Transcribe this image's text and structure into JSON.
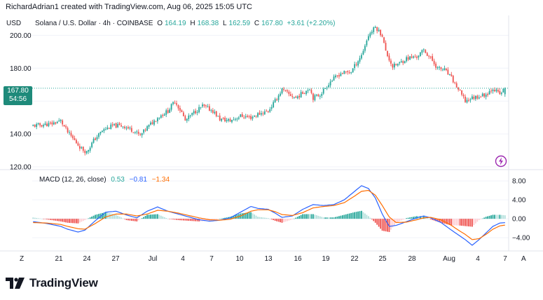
{
  "header": {
    "text": "RichardAdrian1 created with TradingView.com, Aug 06, 2025 15:05 UTC"
  },
  "legend": {
    "currency": "USD",
    "symbol": "Solana / U.S. Dollar · 4h · COINBASE",
    "o_label": "O",
    "o_value": "164.19",
    "h_label": "H",
    "h_value": "168.38",
    "l_label": "L",
    "l_value": "162.59",
    "c_label": "C",
    "c_value": "167.80",
    "change": "+3.61 (+2.20%)"
  },
  "price_badge": {
    "price": "167.80",
    "countdown": "54:56"
  },
  "macd_legend": {
    "name": "MACD (12, 26, close)",
    "hist": "0.53",
    "macd": "−0.81",
    "signal": "−1.34"
  },
  "colors": {
    "up": "#26a69a",
    "down": "#ef5350",
    "macd": "#2962ff",
    "signal": "#ff6d00",
    "badge": "#1e8a7a"
  },
  "logo": {
    "text": "TradingView"
  },
  "chart_data": [
    {
      "type": "candlestick",
      "title": "Solana / U.S. Dollar · 4h · COINBASE",
      "currency": "USD",
      "ylim": [
        120,
        207
      ],
      "y_ticks": [
        "120.00",
        "140.00",
        "160.00",
        "180.00",
        "200.00"
      ],
      "x_ticks": [
        "21",
        "24",
        "27",
        "Jul",
        "4",
        "7",
        "10",
        "13",
        "16",
        "19",
        "22",
        "25",
        "28",
        "Aug",
        "4",
        "7"
      ],
      "last": {
        "open": 164.19,
        "high": 168.38,
        "low": 162.59,
        "close": 167.8
      },
      "close_path": [
        [
          0,
          145
        ],
        [
          10,
          146
        ],
        [
          16,
          148
        ],
        [
          20,
          141
        ],
        [
          24,
          136
        ],
        [
          28,
          131
        ],
        [
          31,
          129
        ],
        [
          35,
          136
        ],
        [
          40,
          142
        ],
        [
          46,
          145
        ],
        [
          52,
          145
        ],
        [
          58,
          142
        ],
        [
          62,
          139
        ],
        [
          66,
          144
        ],
        [
          72,
          150
        ],
        [
          78,
          154
        ],
        [
          82,
          160
        ],
        [
          86,
          153
        ],
        [
          88,
          148
        ],
        [
          93,
          153
        ],
        [
          98,
          157
        ],
        [
          104,
          154
        ],
        [
          108,
          149
        ],
        [
          114,
          148
        ],
        [
          120,
          151
        ],
        [
          126,
          150
        ],
        [
          130,
          152
        ],
        [
          136,
          154
        ],
        [
          140,
          160
        ],
        [
          144,
          167
        ],
        [
          148,
          164
        ],
        [
          152,
          162
        ],
        [
          156,
          165
        ],
        [
          160,
          168
        ],
        [
          162,
          162
        ],
        [
          166,
          164
        ],
        [
          172,
          172
        ],
        [
          178,
          177
        ],
        [
          184,
          178
        ],
        [
          190,
          188
        ],
        [
          194,
          200
        ],
        [
          198,
          205
        ],
        [
          202,
          200
        ],
        [
          204,
          190
        ],
        [
          208,
          181
        ],
        [
          212,
          183
        ],
        [
          216,
          186
        ],
        [
          222,
          187
        ],
        [
          226,
          191
        ],
        [
          230,
          186
        ],
        [
          234,
          180
        ],
        [
          238,
          179
        ],
        [
          242,
          174
        ],
        [
          246,
          167
        ],
        [
          250,
          160
        ],
        [
          254,
          162
        ],
        [
          258,
          163
        ],
        [
          262,
          164
        ],
        [
          266,
          168
        ],
        [
          270,
          164
        ],
        [
          273,
          168
        ]
      ]
    },
    {
      "type": "macd",
      "title": "MACD (12, 26, close)",
      "ylim": [
        -6.2,
        9.2
      ],
      "y_ticks": [
        "−4.00",
        "0.00",
        "4.00",
        "8.00"
      ],
      "hist_last": 0.53,
      "macd_last": -0.81,
      "signal_last": -1.34,
      "macd_path": [
        [
          0,
          -0.6
        ],
        [
          8,
          -1.0
        ],
        [
          16,
          -1.6
        ],
        [
          20,
          -2.2
        ],
        [
          26,
          -2.8
        ],
        [
          30,
          -2.4
        ],
        [
          36,
          -0.4
        ],
        [
          42,
          1.4
        ],
        [
          48,
          1.6
        ],
        [
          54,
          0.8
        ],
        [
          60,
          0.2
        ],
        [
          66,
          1.6
        ],
        [
          72,
          2.5
        ],
        [
          78,
          1.6
        ],
        [
          84,
          1.0
        ],
        [
          90,
          0.4
        ],
        [
          96,
          -0.2
        ],
        [
          102,
          -0.5
        ],
        [
          108,
          -0.3
        ],
        [
          114,
          0.2
        ],
        [
          120,
          1.4
        ],
        [
          126,
          2.6
        ],
        [
          130,
          2.2
        ],
        [
          136,
          2.0
        ],
        [
          140,
          1.2
        ],
        [
          144,
          0.3
        ],
        [
          150,
          0.6
        ],
        [
          156,
          2.0
        ],
        [
          162,
          3.0
        ],
        [
          168,
          2.8
        ],
        [
          174,
          3.0
        ],
        [
          180,
          4.0
        ],
        [
          186,
          5.8
        ],
        [
          190,
          7.0
        ],
        [
          194,
          6.4
        ],
        [
          198,
          4.4
        ],
        [
          202,
          1.0
        ],
        [
          206,
          -1.6
        ],
        [
          210,
          -1.4
        ],
        [
          216,
          -0.6
        ],
        [
          222,
          0.2
        ],
        [
          226,
          0.6
        ],
        [
          230,
          0.2
        ],
        [
          236,
          -0.8
        ],
        [
          242,
          -2.4
        ],
        [
          246,
          -3.4
        ],
        [
          250,
          -4.4
        ],
        [
          254,
          -5.6
        ],
        [
          258,
          -4.4
        ],
        [
          262,
          -3.0
        ],
        [
          266,
          -1.6
        ],
        [
          270,
          -0.9
        ],
        [
          273,
          -0.81
        ]
      ],
      "signal_path": [
        [
          0,
          -0.8
        ],
        [
          8,
          -0.9
        ],
        [
          16,
          -1.2
        ],
        [
          20,
          -1.6
        ],
        [
          26,
          -2.1
        ],
        [
          30,
          -2.2
        ],
        [
          36,
          -1.0
        ],
        [
          42,
          0.4
        ],
        [
          48,
          1.0
        ],
        [
          54,
          1.0
        ],
        [
          60,
          0.6
        ],
        [
          66,
          1.0
        ],
        [
          72,
          1.8
        ],
        [
          78,
          1.6
        ],
        [
          84,
          1.2
        ],
        [
          90,
          0.7
        ],
        [
          96,
          0.2
        ],
        [
          102,
          -0.2
        ],
        [
          108,
          -0.3
        ],
        [
          114,
          -0.1
        ],
        [
          120,
          0.6
        ],
        [
          126,
          1.6
        ],
        [
          130,
          1.9
        ],
        [
          136,
          1.9
        ],
        [
          140,
          1.5
        ],
        [
          144,
          0.9
        ],
        [
          150,
          0.7
        ],
        [
          156,
          1.3
        ],
        [
          162,
          2.3
        ],
        [
          168,
          2.6
        ],
        [
          174,
          2.8
        ],
        [
          180,
          3.4
        ],
        [
          186,
          4.8
        ],
        [
          190,
          5.8
        ],
        [
          194,
          6.0
        ],
        [
          198,
          5.0
        ],
        [
          202,
          2.8
        ],
        [
          206,
          0.4
        ],
        [
          210,
          -0.8
        ],
        [
          216,
          -0.7
        ],
        [
          222,
          -0.2
        ],
        [
          226,
          0.2
        ],
        [
          230,
          0.3
        ],
        [
          236,
          -0.2
        ],
        [
          242,
          -1.4
        ],
        [
          246,
          -2.4
        ],
        [
          250,
          -3.3
        ],
        [
          254,
          -4.4
        ],
        [
          258,
          -4.2
        ],
        [
          262,
          -3.3
        ],
        [
          266,
          -2.2
        ],
        [
          270,
          -1.5
        ],
        [
          273,
          -1.34
        ]
      ]
    }
  ]
}
